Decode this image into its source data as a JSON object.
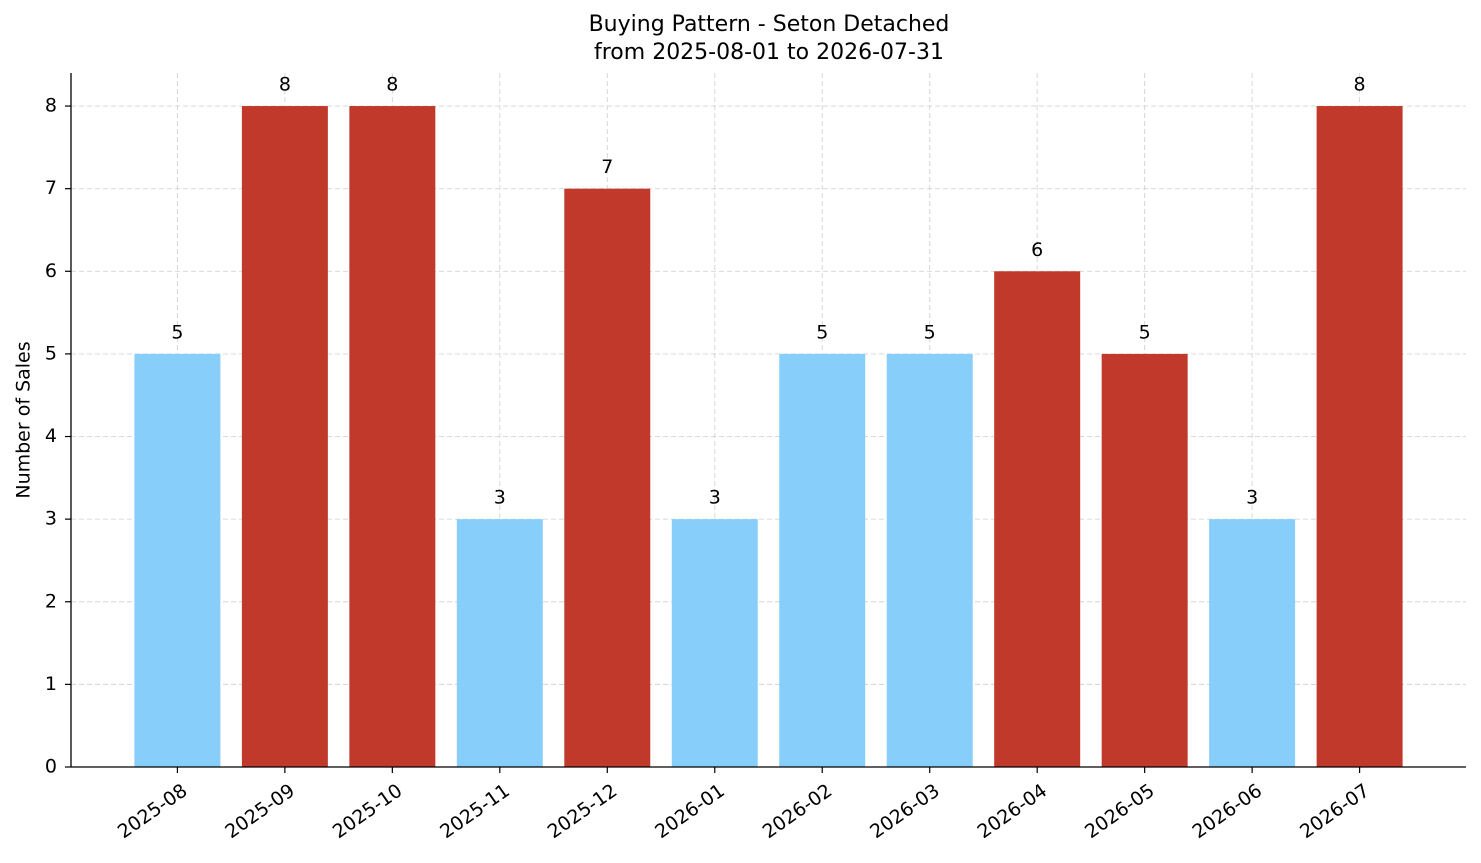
{
  "chart_data": {
    "type": "bar",
    "title": "Buying Pattern - Seton Detached",
    "subtitle": "from 2025-08-01 to 2026-07-31",
    "y_label": "Number of Sales",
    "categories": [
      "2025-08",
      "2025-09",
      "2025-10",
      "2025-11",
      "2025-12",
      "2026-01",
      "2026-02",
      "2026-03",
      "2026-04",
      "2026-05",
      "2026-06",
      "2026-07"
    ],
    "values": [
      5,
      8,
      8,
      3,
      7,
      3,
      5,
      5,
      6,
      5,
      3,
      8
    ],
    "colors": [
      "#87cefa",
      "#c0392b",
      "#c0392b",
      "#87cefa",
      "#c0392b",
      "#87cefa",
      "#87cefa",
      "#87cefa",
      "#c0392b",
      "#c0392b",
      "#87cefa",
      "#c0392b"
    ],
    "ylim": [
      0,
      8.4
    ],
    "yticks": [
      0,
      1,
      2,
      3,
      4,
      5,
      6,
      7,
      8
    ],
    "grid": true
  }
}
